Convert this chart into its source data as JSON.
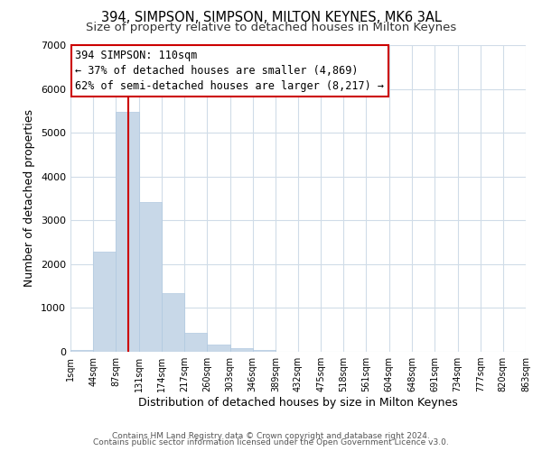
{
  "title": "394, SIMPSON, SIMPSON, MILTON KEYNES, MK6 3AL",
  "subtitle": "Size of property relative to detached houses in Milton Keynes",
  "xlabel": "Distribution of detached houses by size in Milton Keynes",
  "ylabel": "Number of detached properties",
  "bar_color": "#c8d8e8",
  "bar_edge_color": "#b0c8e0",
  "bar_values": [
    50,
    2280,
    5470,
    3420,
    1340,
    440,
    160,
    90,
    50,
    0,
    0,
    0,
    0,
    0,
    0,
    0,
    0,
    0,
    0,
    0
  ],
  "bin_edges": [
    1,
    44,
    87,
    131,
    174,
    217,
    260,
    303,
    346,
    389,
    432,
    475,
    518,
    561,
    604,
    648,
    691,
    734,
    777,
    820,
    863
  ],
  "tick_labels": [
    "1sqm",
    "44sqm",
    "87sqm",
    "131sqm",
    "174sqm",
    "217sqm",
    "260sqm",
    "303sqm",
    "346sqm",
    "389sqm",
    "432sqm",
    "475sqm",
    "518sqm",
    "561sqm",
    "604sqm",
    "648sqm",
    "691sqm",
    "734sqm",
    "777sqm",
    "820sqm",
    "863sqm"
  ],
  "ylim": [
    0,
    7000
  ],
  "yticks": [
    0,
    1000,
    2000,
    3000,
    4000,
    5000,
    6000,
    7000
  ],
  "vline_x": 110,
  "vline_color": "#cc0000",
  "annotation_title": "394 SIMPSON: 110sqm",
  "annotation_line1": "← 37% of detached houses are smaller (4,869)",
  "annotation_line2": "62% of semi-detached houses are larger (8,217) →",
  "annotation_box_color": "#ffffff",
  "annotation_box_edge": "#cc0000",
  "footer_line1": "Contains HM Land Registry data © Crown copyright and database right 2024.",
  "footer_line2": "Contains public sector information licensed under the Open Government Licence v3.0.",
  "background_color": "#ffffff",
  "grid_color": "#d0dce8",
  "title_fontsize": 10.5,
  "subtitle_fontsize": 9.5,
  "axis_label_fontsize": 9
}
